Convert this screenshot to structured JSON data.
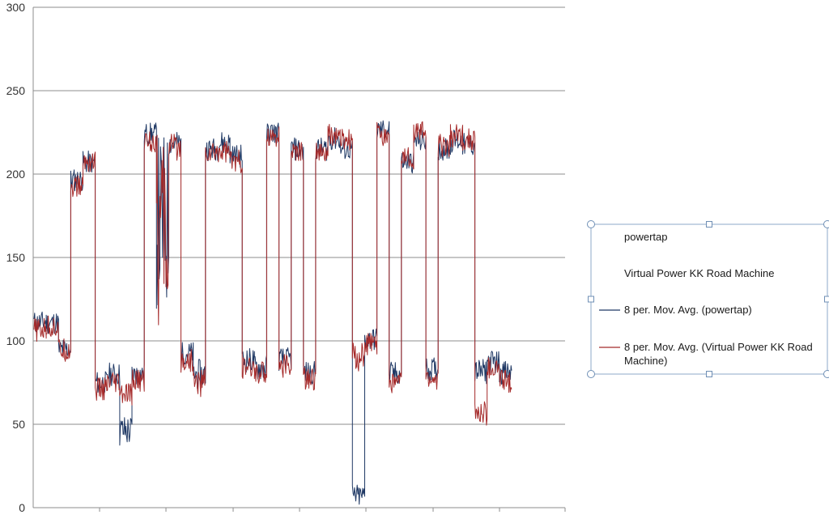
{
  "chart_data": {
    "type": "line",
    "title": "",
    "xlabel": "",
    "ylabel": "",
    "ylim": [
      0,
      300
    ],
    "yticks": [
      "0",
      "50",
      "100",
      "150",
      "200",
      "250",
      "300"
    ],
    "grid": "horizontal",
    "legend_position": "right",
    "legend": [
      {
        "label": "powertap",
        "line": false
      },
      {
        "label": "Virtual Power KK Road Machine",
        "line": false
      },
      {
        "label": "8 per. Mov. Avg. (powertap)",
        "line": true,
        "color": "#1f3864"
      },
      {
        "label": "8 per. Mov. Avg. (Virtual Power KK Road Machine)",
        "line": true,
        "color": "#a52a2a",
        "lines": [
          "8 per. Mov. Avg. (Virtual Power KK Road",
          "Machine)"
        ]
      }
    ],
    "series": [
      {
        "name": "8 per. Mov. Avg. (powertap)",
        "color": "#1f3864",
        "segments": [
          [
            0,
            110,
            112
          ],
          [
            3,
            110,
            112
          ],
          [
            4,
            93,
            97
          ],
          [
            5,
            195,
            198
          ],
          [
            6,
            206,
            208
          ],
          [
            7,
            72,
            78
          ],
          [
            8,
            78,
            82
          ],
          [
            9,
            40,
            52
          ],
          [
            10,
            78,
            82
          ],
          [
            11,
            222,
            226
          ],
          [
            12,
            120,
            222
          ],
          [
            13,
            215,
            222
          ],
          [
            14,
            90,
            95
          ],
          [
            15,
            75,
            85
          ],
          [
            16,
            212,
            218
          ],
          [
            17,
            215,
            222
          ],
          [
            18,
            208,
            214
          ],
          [
            19,
            85,
            92
          ],
          [
            20,
            80,
            88
          ],
          [
            21,
            222,
            228
          ],
          [
            22,
            86,
            92
          ],
          [
            23,
            212,
            218
          ],
          [
            24,
            78,
            84
          ],
          [
            25,
            212,
            218
          ],
          [
            26,
            218,
            224
          ],
          [
            27,
            213,
            217
          ],
          [
            28,
            4,
            10
          ],
          [
            29,
            98,
            104
          ],
          [
            30,
            225,
            228
          ],
          [
            31,
            78,
            83
          ],
          [
            32,
            205,
            210
          ],
          [
            33,
            218,
            222
          ],
          [
            34,
            80,
            86
          ],
          [
            35,
            212,
            218
          ],
          [
            36,
            218,
            222
          ],
          [
            37,
            215,
            220
          ],
          [
            38,
            78,
            85
          ],
          [
            39,
            85,
            90
          ],
          [
            40,
            78,
            84
          ]
        ]
      },
      {
        "name": "8 per. Mov. Avg. (Virtual Power KK Road Machine)",
        "color": "#a52a2a",
        "segments": [
          [
            0,
            105,
            108
          ],
          [
            3,
            107,
            110
          ],
          [
            4,
            93,
            96
          ],
          [
            5,
            190,
            195
          ],
          [
            6,
            205,
            210
          ],
          [
            7,
            68,
            74
          ],
          [
            8,
            72,
            76
          ],
          [
            9,
            65,
            70
          ],
          [
            10,
            74,
            78
          ],
          [
            11,
            218,
            222
          ],
          [
            12,
            110,
            220
          ],
          [
            13,
            212,
            220
          ],
          [
            14,
            86,
            90
          ],
          [
            15,
            70,
            80
          ],
          [
            16,
            210,
            215
          ],
          [
            17,
            212,
            216
          ],
          [
            18,
            205,
            210
          ],
          [
            19,
            80,
            86
          ],
          [
            20,
            78,
            84
          ],
          [
            21,
            220,
            226
          ],
          [
            22,
            82,
            88
          ],
          [
            23,
            210,
            216
          ],
          [
            24,
            75,
            80
          ],
          [
            25,
            210,
            214
          ],
          [
            26,
            220,
            226
          ],
          [
            27,
            218,
            222
          ],
          [
            28,
            85,
            95
          ],
          [
            29,
            96,
            100
          ],
          [
            30,
            222,
            226
          ],
          [
            31,
            72,
            78
          ],
          [
            32,
            208,
            212
          ],
          [
            33,
            222,
            228
          ],
          [
            34,
            74,
            80
          ],
          [
            35,
            214,
            220
          ],
          [
            36,
            220,
            226
          ],
          [
            37,
            218,
            224
          ],
          [
            38,
            52,
            60
          ],
          [
            39,
            80,
            86
          ],
          [
            40,
            74,
            78
          ]
        ]
      }
    ]
  }
}
